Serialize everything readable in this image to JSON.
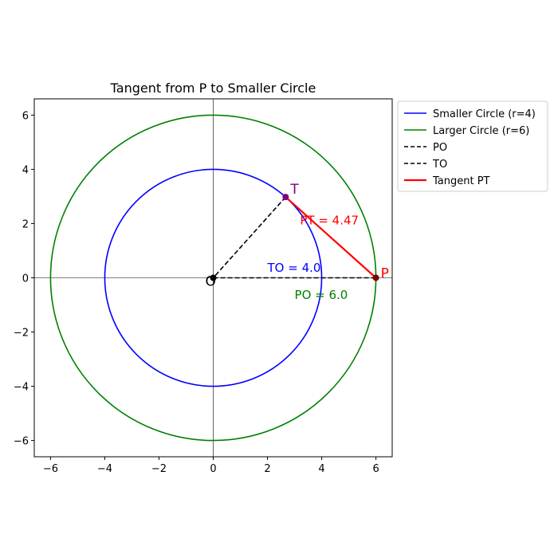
{
  "chart_data": {
    "type": "line",
    "title": "Tangent from P to Smaller Circle",
    "xlabel": "",
    "ylabel": "",
    "xlim": [
      -6.6,
      6.6
    ],
    "ylim": [
      -6.6,
      6.6
    ],
    "xticks": [
      -6,
      -4,
      -2,
      0,
      2,
      4,
      6
    ],
    "yticks": [
      -6,
      -4,
      -2,
      0,
      2,
      4,
      6
    ],
    "xtick_labels": [
      "−6",
      "−4",
      "−2",
      "0",
      "2",
      "4",
      "6"
    ],
    "ytick_labels": [
      "−6",
      "−4",
      "−2",
      "0",
      "2",
      "4",
      "6"
    ],
    "grid": false,
    "axis_lines_at_origin": true,
    "legend_position": "outside-top-right",
    "circles": [
      {
        "name": "Smaller Circle (r=4)",
        "cx": 0,
        "cy": 0,
        "r": 4,
        "color": "#0000ff"
      },
      {
        "name": "Larger Circle (r=6)",
        "cx": 0,
        "cy": 0,
        "r": 6,
        "color": "#008000"
      }
    ],
    "segments": [
      {
        "name": "PO",
        "from": [
          6,
          0
        ],
        "to": [
          0,
          0
        ],
        "color": "#000000",
        "style": "dashed"
      },
      {
        "name": "TO",
        "from": [
          2.67,
          2.98
        ],
        "to": [
          0,
          0
        ],
        "color": "#000000",
        "style": "dashed"
      },
      {
        "name": "Tangent PT",
        "from": [
          6,
          0
        ],
        "to": [
          2.67,
          2.98
        ],
        "color": "#ff0000",
        "style": "solid"
      }
    ],
    "points": [
      {
        "label": "O",
        "x": 0,
        "y": 0,
        "color": "#000000",
        "label_color": "#000000"
      },
      {
        "label": "T",
        "x": 2.67,
        "y": 2.98,
        "color": "#800080",
        "label_color": "#800080"
      },
      {
        "label": "P",
        "x": 6,
        "y": 0,
        "color": "#800000",
        "label_color": "#ff0000"
      }
    ],
    "annotations": [
      {
        "text": "PT = 4.47",
        "x": 3.2,
        "y": 2.1,
        "color": "#ff0000"
      },
      {
        "text": "TO = 4.0",
        "x": 2.0,
        "y": 0.35,
        "color": "#0000ff"
      },
      {
        "text": "PO = 6.0",
        "x": 3.0,
        "y": -0.65,
        "color": "#008000"
      }
    ]
  }
}
